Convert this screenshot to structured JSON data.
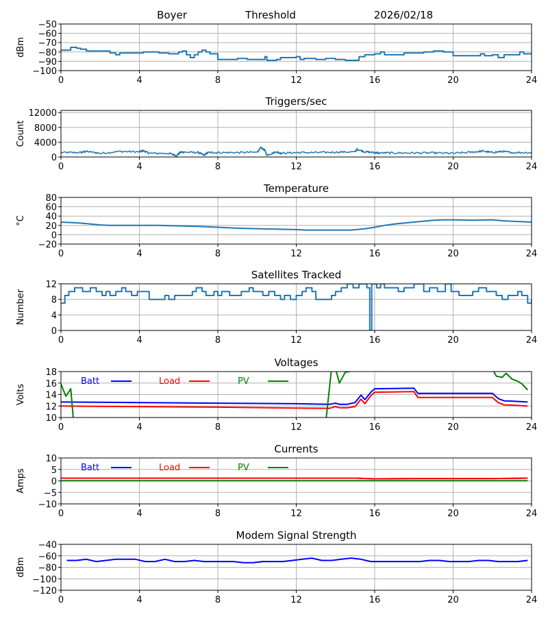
{
  "header": {
    "station": "Boyer",
    "mode": "Threshold",
    "date": "2026/02/18"
  },
  "colors": {
    "default_line": "#1f77b4",
    "batt": "#0000ff",
    "load": "#ff0000",
    "pv": "#008000",
    "grid": "#b0b0b0",
    "axis": "#000000"
  },
  "chart_data": [
    {
      "id": "threshold",
      "type": "line",
      "title": "",
      "xlabel": "",
      "ylabel": "dBm",
      "xlim": [
        0,
        24
      ],
      "ylim": [
        -100,
        -50
      ],
      "xticks": [
        0,
        4,
        8,
        12,
        16,
        20,
        24
      ],
      "yticks": [
        -100,
        -90,
        -80,
        -70,
        -60,
        -50
      ],
      "ytick_labels": [
        "−100",
        "−90",
        "−80",
        "−70",
        "−60",
        "−50"
      ],
      "grid": true,
      "series": [
        {
          "name": "Threshold",
          "color": "#1f77b4",
          "step": true,
          "x": [
            0,
            0.5,
            0.8,
            1.0,
            1.3,
            2.0,
            2.5,
            2.8,
            3.0,
            4.0,
            4.2,
            4.6,
            5.0,
            5.5,
            5.8,
            6.0,
            6.2,
            6.4,
            6.6,
            6.8,
            7.0,
            7.2,
            7.4,
            7.6,
            8.0,
            8.4,
            9.0,
            9.5,
            10.0,
            10.2,
            10.4,
            10.5,
            11.0,
            11.2,
            11.4,
            12.0,
            12.2,
            12.4,
            13.0,
            13.5,
            14.0,
            14.5,
            15.0,
            15.2,
            15.5,
            16.0,
            16.3,
            16.5,
            17.0,
            17.5,
            18.0,
            18.5,
            19.0,
            19.5,
            19.8,
            20.0,
            20.5,
            21.0,
            21.4,
            21.6,
            22.0,
            22.3,
            22.6,
            23.0,
            23.4,
            23.6,
            24.0
          ],
          "y": [
            -78,
            -75,
            -76,
            -77,
            -79,
            -79,
            -81,
            -83,
            -81,
            -81,
            -80,
            -80,
            -81,
            -82,
            -82,
            -80,
            -79,
            -83,
            -86,
            -83,
            -80,
            -78,
            -80,
            -82,
            -88,
            -88,
            -87,
            -88,
            -88,
            -88,
            -85,
            -89,
            -88,
            -86,
            -86,
            -85,
            -88,
            -87,
            -88,
            -87,
            -88,
            -89,
            -89,
            -85,
            -83,
            -82,
            -80,
            -83,
            -83,
            -81,
            -81,
            -80,
            -79,
            -80,
            -80,
            -84,
            -84,
            -84,
            -82,
            -84,
            -83,
            -86,
            -83,
            -83,
            -80,
            -82,
            -82
          ]
        }
      ]
    },
    {
      "id": "triggers",
      "type": "line",
      "title": "Triggers/sec",
      "xlabel": "",
      "ylabel": "Count",
      "xlim": [
        0,
        24
      ],
      "ylim": [
        0,
        12600
      ],
      "xticks": [
        0,
        4,
        8,
        12,
        16,
        20,
        24
      ],
      "yticks": [
        0,
        4000,
        8000,
        12000
      ],
      "ytick_labels": [
        "0",
        "4000",
        "8000",
        "12000"
      ],
      "grid": true,
      "series": [
        {
          "name": "Triggers",
          "color": "#1f77b4",
          "noisy": true,
          "x": [
            0,
            1.0,
            1.3,
            2.0,
            3.0,
            4.0,
            4.2,
            4.5,
            5.5,
            5.9,
            6.1,
            6.3,
            7.0,
            7.3,
            7.5,
            8.0,
            9.0,
            10.0,
            10.2,
            10.4,
            10.5,
            11.0,
            11.2,
            12.0,
            13.0,
            14.0,
            15.0,
            15.1,
            15.5,
            16.0,
            16.2,
            17.0,
            18.0,
            19.0,
            20.0,
            21.0,
            21.5,
            22.0,
            22.5,
            23.0,
            24.0
          ],
          "y": [
            1200,
            1200,
            1500,
            1000,
            1500,
            1400,
            1700,
            1000,
            1000,
            400,
            1300,
            1300,
            1200,
            500,
            1200,
            1200,
            1200,
            1300,
            2500,
            1800,
            500,
            1400,
            1000,
            1200,
            1200,
            1300,
            1400,
            2100,
            1400,
            1200,
            1100,
            1100,
            1100,
            1100,
            1000,
            1300,
            1600,
            1200,
            1500,
            1200,
            1200
          ]
        }
      ]
    },
    {
      "id": "temperature",
      "type": "line",
      "title": "Temperature",
      "xlabel": "",
      "ylabel": "°C",
      "xlim": [
        0,
        24
      ],
      "ylim": [
        -20,
        80
      ],
      "xticks": [
        0,
        4,
        8,
        12,
        16,
        20,
        24
      ],
      "yticks": [
        -20,
        0,
        20,
        40,
        60,
        80
      ],
      "ytick_labels": [
        "−20",
        "0",
        "20",
        "40",
        "60",
        "80"
      ],
      "grid": true,
      "series": [
        {
          "name": "Temperature",
          "color": "#1f77b4",
          "x": [
            0,
            1,
            2,
            2.5,
            4,
            5,
            6,
            7,
            8,
            9,
            10,
            11,
            12,
            12.5,
            13,
            14,
            14.8,
            15.5,
            16,
            16.5,
            17,
            18,
            19,
            19.5,
            20,
            21,
            22,
            22.5,
            23,
            24
          ],
          "y": [
            27,
            25,
            21,
            20,
            20,
            20,
            19,
            18,
            16,
            14,
            13,
            12,
            11,
            10,
            10,
            10,
            10,
            13,
            16,
            20,
            23,
            27,
            31,
            32,
            32,
            31,
            32,
            30,
            29,
            27
          ]
        }
      ]
    },
    {
      "id": "satellites",
      "type": "line",
      "title": "Satellites Tracked",
      "xlabel": "",
      "ylabel": "Number",
      "xlim": [
        0,
        24
      ],
      "ylim": [
        0,
        12
      ],
      "xticks": [
        0,
        4,
        8,
        12,
        16,
        20,
        24
      ],
      "yticks": [
        0,
        4,
        8,
        12
      ],
      "ytick_labels": [
        "0",
        "4",
        "8",
        "12"
      ],
      "grid": true,
      "series": [
        {
          "name": "Satellites",
          "color": "#1f77b4",
          "step": true,
          "x": [
            0,
            0.2,
            0.4,
            0.7,
            1.1,
            1.5,
            1.8,
            2.1,
            2.3,
            2.5,
            2.8,
            3.1,
            3.3,
            3.6,
            3.9,
            4.0,
            4.5,
            5.3,
            5.5,
            5.8,
            6.0,
            6.7,
            6.9,
            7.2,
            7.4,
            7.8,
            8.0,
            8.2,
            8.6,
            9.2,
            9.6,
            9.8,
            10.3,
            10.6,
            10.9,
            11.2,
            11.4,
            11.7,
            12.0,
            12.3,
            12.5,
            12.8,
            13.0,
            13.8,
            14.0,
            14.3,
            14.6,
            14.9,
            15.2,
            15.6,
            15.75,
            15.85,
            16.1,
            16.3,
            16.5,
            17.2,
            17.5,
            18.0,
            18.5,
            18.8,
            19.2,
            19.6,
            19.9,
            20.3,
            20.8,
            21.0,
            21.3,
            21.7,
            22.2,
            22.5,
            22.8,
            23.3,
            23.5,
            23.8,
            24.0
          ],
          "y": [
            7,
            9,
            10,
            11,
            10,
            11,
            10,
            9,
            10,
            9,
            10,
            11,
            10,
            9,
            10,
            10,
            8,
            9,
            8,
            9,
            9,
            10,
            11,
            10,
            9,
            10,
            9,
            10,
            9,
            10,
            11,
            10,
            9,
            10,
            9,
            8,
            9,
            8,
            9,
            10,
            11,
            10,
            8,
            9,
            10,
            11,
            12,
            11,
            12,
            11,
            0,
            12,
            11,
            12,
            11,
            10,
            11,
            12,
            10,
            11,
            10,
            12,
            10,
            9,
            9,
            10,
            11,
            10,
            9,
            8,
            9,
            10,
            9,
            7,
            8
          ]
        }
      ]
    },
    {
      "id": "voltages",
      "type": "line",
      "title": "Voltages",
      "xlabel": "",
      "ylabel": "Volts",
      "xlim": [
        0,
        24
      ],
      "ylim": [
        10,
        18
      ],
      "xticks": [
        0,
        4,
        8,
        12,
        16,
        20,
        24
      ],
      "yticks": [
        10,
        12,
        14,
        16,
        18
      ],
      "ytick_labels": [
        "10",
        "12",
        "14",
        "16",
        "18"
      ],
      "grid": true,
      "legend": {
        "placement": "top-left",
        "entries": [
          "Batt",
          "Load",
          "PV"
        ]
      },
      "series": [
        {
          "name": "Batt",
          "color": "#0000ff",
          "x": [
            0,
            4,
            8,
            12,
            13.7,
            14.0,
            14.2,
            14.6,
            15.0,
            15.3,
            15.5,
            15.8,
            16.0,
            18.0,
            18.2,
            20,
            22.0,
            22.3,
            22.6,
            23,
            23.8
          ],
          "y": [
            12.7,
            12.6,
            12.5,
            12.4,
            12.3,
            12.5,
            12.3,
            12.3,
            12.6,
            13.9,
            13.1,
            14.4,
            15.0,
            15.1,
            14.2,
            14.2,
            14.2,
            13.3,
            12.9,
            12.85,
            12.7
          ]
        },
        {
          "name": "Load",
          "color": "#ff0000",
          "x": [
            0,
            4,
            8,
            12,
            13.7,
            14.0,
            14.2,
            14.6,
            15.0,
            15.3,
            15.5,
            15.8,
            16.0,
            18.0,
            18.2,
            20,
            22.0,
            22.3,
            22.6,
            23,
            23.8
          ],
          "y": [
            12.0,
            11.9,
            11.8,
            11.65,
            11.6,
            11.9,
            11.7,
            11.7,
            11.9,
            13.2,
            12.4,
            13.8,
            14.4,
            14.5,
            13.5,
            13.5,
            13.5,
            12.6,
            12.2,
            12.15,
            12.0
          ]
        },
        {
          "name": "PV",
          "color": "#008000",
          "x": [
            0,
            0.25,
            0.5,
            0.65,
            13.5,
            13.8,
            14.0,
            14.2,
            14.5,
            14.7,
            15.0,
            22.0,
            22.2,
            22.5,
            22.7,
            23.0,
            23.3,
            23.5,
            23.8
          ],
          "y": [
            15.8,
            13.7,
            15.0,
            9.0,
            9.0,
            18.5,
            18.5,
            16.0,
            17.9,
            18.0,
            18.2,
            18.5,
            17.2,
            17.0,
            17.7,
            16.7,
            16.3,
            15.9,
            14.8
          ]
        }
      ]
    },
    {
      "id": "currents",
      "type": "line",
      "title": "Currents",
      "xlabel": "",
      "ylabel": "Amps",
      "xlim": [
        0,
        24
      ],
      "ylim": [
        -10,
        10
      ],
      "xticks": [
        0,
        4,
        8,
        12,
        16,
        20,
        24
      ],
      "yticks": [
        -10,
        -5,
        0,
        5,
        10
      ],
      "ytick_labels": [
        "−10",
        "−5",
        "0",
        "5",
        "10"
      ],
      "grid": true,
      "legend": {
        "placement": "top-left",
        "entries": [
          "Batt",
          "Load",
          "PV"
        ]
      },
      "series": [
        {
          "name": "Batt",
          "color": "#0000ff",
          "x": [
            0,
            8,
            15,
            16,
            18,
            22,
            23.8
          ],
          "y": [
            1.2,
            1.2,
            1.2,
            0.9,
            1.0,
            1.0,
            1.2
          ]
        },
        {
          "name": "Load",
          "color": "#ff0000",
          "x": [
            0,
            8,
            15,
            16,
            18,
            22,
            23.8
          ],
          "y": [
            1.2,
            1.2,
            1.2,
            0.9,
            1.0,
            1.0,
            1.2
          ]
        },
        {
          "name": "PV",
          "color": "#008000",
          "x": [
            0,
            23.8
          ],
          "y": [
            0.1,
            0.1
          ]
        }
      ]
    },
    {
      "id": "modem",
      "type": "line",
      "title": "Modem Signal Strength",
      "xlabel": "",
      "ylabel": "dBm",
      "xlim": [
        0,
        24
      ],
      "ylim": [
        -120,
        -40
      ],
      "xticks": [
        0,
        4,
        8,
        12,
        16,
        20,
        24
      ],
      "yticks": [
        -120,
        -100,
        -80,
        -60,
        -40
      ],
      "ytick_labels": [
        "−120",
        "−100",
        "−80",
        "−60",
        "−40"
      ],
      "grid": true,
      "series": [
        {
          "name": "Modem",
          "color": "#0000ff",
          "x": [
            0.3,
            0.8,
            1.3,
            1.8,
            2.3,
            2.8,
            3.3,
            3.8,
            4.3,
            4.8,
            5.3,
            5.8,
            6.3,
            6.8,
            7.3,
            7.8,
            8.3,
            8.8,
            9.3,
            9.8,
            10.3,
            10.8,
            11.3,
            11.8,
            12.3,
            12.8,
            13.3,
            13.8,
            14.3,
            14.8,
            15.3,
            15.8,
            16.3,
            16.8,
            17.3,
            17.8,
            18.3,
            18.8,
            19.3,
            19.8,
            20.3,
            20.8,
            21.3,
            21.8,
            22.3,
            22.8,
            23.3,
            23.8
          ],
          "y": [
            -68,
            -68,
            -66,
            -70,
            -68,
            -66,
            -66,
            -66,
            -70,
            -70,
            -66,
            -70,
            -70,
            -68,
            -70,
            -70,
            -70,
            -70,
            -72,
            -72,
            -70,
            -70,
            -70,
            -68,
            -66,
            -64,
            -68,
            -68,
            -66,
            -64,
            -66,
            -70,
            -70,
            -70,
            -70,
            -70,
            -70,
            -68,
            -68,
            -70,
            -70,
            -70,
            -68,
            -68,
            -70,
            -70,
            -70,
            -68
          ]
        }
      ]
    }
  ]
}
